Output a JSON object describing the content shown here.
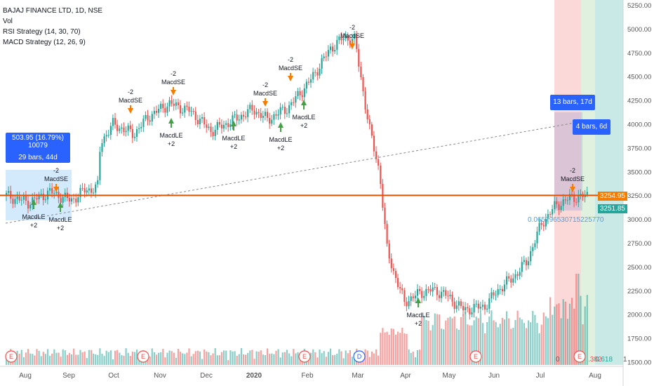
{
  "legend": {
    "symbol_line": "BAJAJ FINANCE LTD, 1D, NSE",
    "vol": "Vol",
    "rsi": "RSI Strategy (14, 30, 70)",
    "macd": "MACD Strategy (12, 26, 9)"
  },
  "price_axis": {
    "ticks": [
      "5250.00",
      "5000.00",
      "4750.00",
      "4500.00",
      "4250.00",
      "4000.00",
      "3750.00",
      "3500.00",
      "3250.00",
      "3000.00",
      "2750.00",
      "2500.00",
      "2250.00",
      "2000.00",
      "1750.00",
      "1500.00"
    ],
    "last_price": "3254.95",
    "crosshair_price": "3251.85"
  },
  "time_axis": {
    "labels": [
      "Aug",
      "Sep",
      "Oct",
      "Nov",
      "Dec",
      "2020",
      "Feb",
      "Mar",
      "Apr",
      "May",
      "Jun",
      "Jul",
      "Aug"
    ]
  },
  "measure_left": {
    "line1": "503.95 (16.79%) 10079",
    "line2": "29 bars, 44d"
  },
  "measure_right_top": "13 bars, 17d",
  "measure_right_small": "4 bars, 6d",
  "fib_text": "0.065796530715225770",
  "fib_382": ".382",
  "fib_618": "0.618",
  "fib_0": "0",
  "fib_1": "1",
  "signals": {
    "short_label": "MacdSE",
    "short_qty": "-2",
    "long_label": "MacdLE",
    "long_qty": "+2"
  },
  "event_markers": {
    "earnings": "E",
    "dividend": "D"
  },
  "colors": {
    "up": "#26a69a",
    "down": "#ef5350",
    "short_arrow": "#f57c00",
    "long_arrow": "#43a047",
    "orange_line": "#e65100",
    "measure_blue": "#2962ff"
  }
}
